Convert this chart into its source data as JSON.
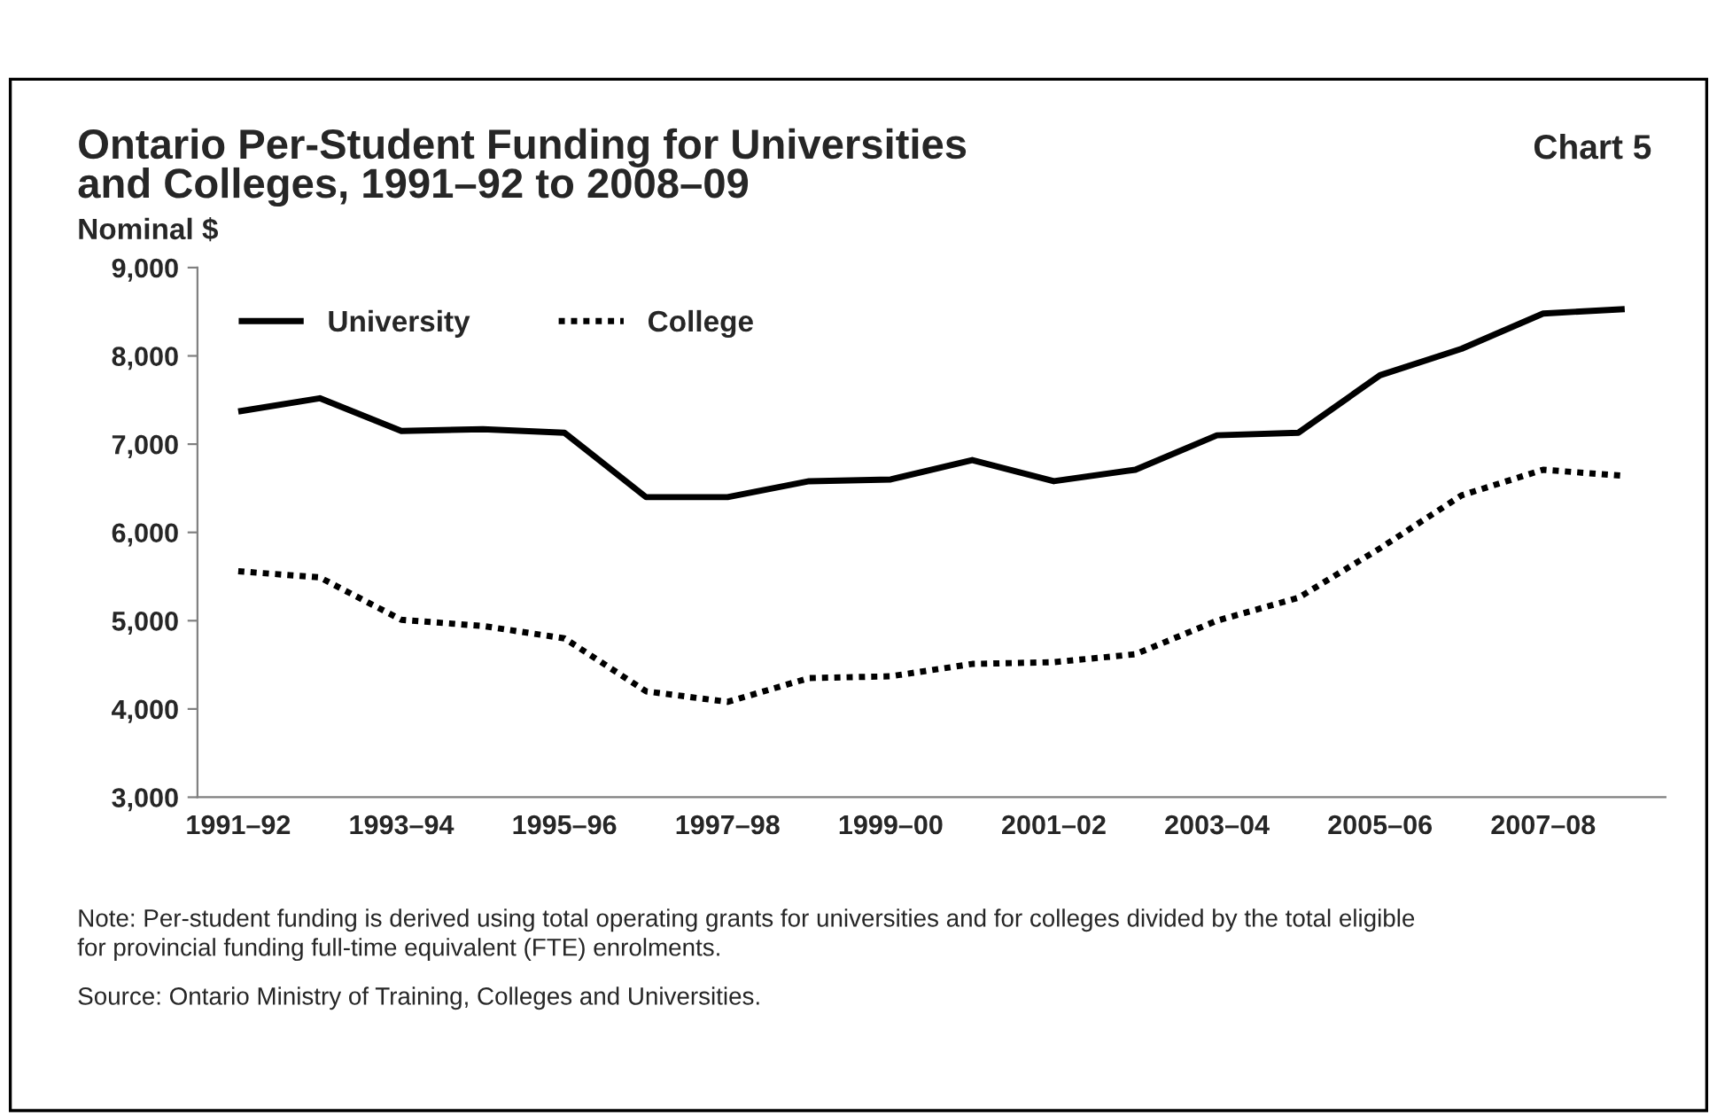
{
  "chart_data": {
    "type": "line",
    "title": "Ontario Per-Student Funding for Universities\nand Colleges, 1991–92 to 2008–09",
    "subtitle": "Chart 5",
    "ylabel": "Nominal $",
    "categories": [
      "1991–92",
      null,
      "1993–94",
      null,
      "1995–96",
      null,
      "1997–98",
      null,
      "1999–00",
      null,
      "2001–02",
      null,
      "2003–04",
      null,
      "2005–06",
      null,
      "2007–08",
      null
    ],
    "series": [
      {
        "name": "University",
        "color": "#000000",
        "line_style": "solid",
        "values": [
          7370,
          7520,
          7150,
          7170,
          7130,
          6400,
          6400,
          6580,
          6600,
          6820,
          6580,
          6710,
          7100,
          7130,
          7780,
          8080,
          8480,
          8530
        ]
      },
      {
        "name": "College",
        "color": "#000000",
        "line_style": "dotted",
        "values": [
          5560,
          5490,
          5010,
          4940,
          4800,
          4200,
          4080,
          4350,
          4370,
          4510,
          4530,
          4620,
          5000,
          5260,
          5820,
          6420,
          6710,
          6640
        ]
      }
    ],
    "ylim": [
      3000,
      9000
    ],
    "yticks": [
      {
        "value": 3000,
        "label": "3,000"
      },
      {
        "value": 4000,
        "label": "4,000"
      },
      {
        "value": 5000,
        "label": "5,000"
      },
      {
        "value": 6000,
        "label": "6,000"
      },
      {
        "value": 7000,
        "label": "7,000"
      },
      {
        "value": 8000,
        "label": "8,000"
      },
      {
        "value": 9000,
        "label": "9,000"
      }
    ],
    "grid": false,
    "legend": "top left",
    "annotations": [
      "Note: Per-student funding is derived using total operating grants for universities and for colleges divided by the total eligible\nfor provincial funding full-time equivalent (FTE) enrolments.",
      "Source: Ontario Ministry of Training, Colleges and Universities."
    ]
  }
}
